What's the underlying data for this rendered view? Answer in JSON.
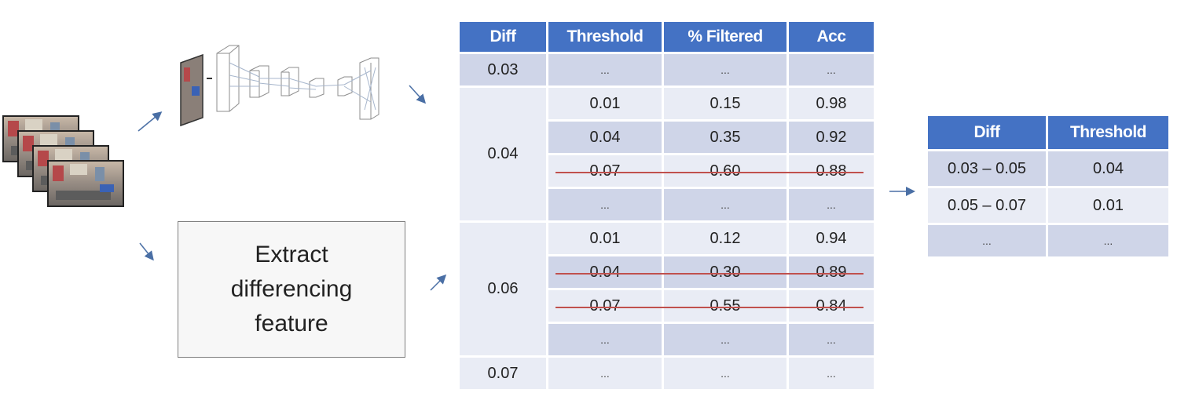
{
  "feature_box": {
    "label": "Extract\ndifferencing\nfeature"
  },
  "profile_table": {
    "headers": [
      "Diff",
      "Threshold",
      "% Filtered",
      "Acc"
    ],
    "groups": [
      {
        "diff": "0.03",
        "rows": [
          {
            "threshold": "...",
            "filtered": "...",
            "acc": "...",
            "struck": false
          }
        ]
      },
      {
        "diff": "0.04",
        "rows": [
          {
            "threshold": "0.01",
            "filtered": "0.15",
            "acc": "0.98",
            "struck": false
          },
          {
            "threshold": "0.04",
            "filtered": "0.35",
            "acc": "0.92",
            "struck": false
          },
          {
            "threshold": "0.07",
            "filtered": "0.60",
            "acc": "0.88",
            "struck": true
          },
          {
            "threshold": "...",
            "filtered": "...",
            "acc": "...",
            "struck": false
          }
        ]
      },
      {
        "diff": "0.06",
        "rows": [
          {
            "threshold": "0.01",
            "filtered": "0.12",
            "acc": "0.94",
            "struck": false
          },
          {
            "threshold": "0.04",
            "filtered": "0.30",
            "acc": "0.89",
            "struck": true
          },
          {
            "threshold": "0.07",
            "filtered": "0.55",
            "acc": "0.84",
            "struck": true
          },
          {
            "threshold": "...",
            "filtered": "...",
            "acc": "...",
            "struck": false
          }
        ]
      },
      {
        "diff": "0.07",
        "rows": [
          {
            "threshold": "...",
            "filtered": "...",
            "acc": "...",
            "struck": false
          }
        ]
      }
    ]
  },
  "result_table": {
    "headers": [
      "Diff",
      "Threshold"
    ],
    "rows": [
      {
        "diff": "0.03 – 0.05",
        "threshold": "0.04"
      },
      {
        "diff": "0.05 – 0.07",
        "threshold": "0.01"
      },
      {
        "diff": "...",
        "threshold": "..."
      }
    ]
  },
  "colors": {
    "header": "#4472c4",
    "row_dark": "#cfd5e8",
    "row_light": "#e9ecf5",
    "strike": "#c0504d",
    "arrow": "#4a6fa5"
  }
}
